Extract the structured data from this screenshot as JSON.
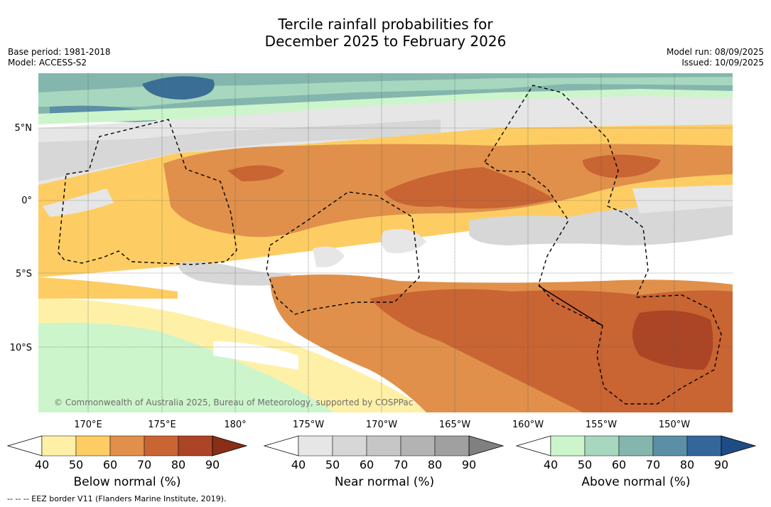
{
  "title_line1": "Tercile rainfall probabilities for",
  "title_line2": "December 2025 to February 2026",
  "base_period": "Base period: 1981-2018",
  "model": "Model: ACCESS-S2",
  "model_run": "Model run: 08/09/2025",
  "issued": "Issued: 10/09/2025",
  "credit": "© Commonwealth of Australia 2025, Bureau of Meteorology, supported by COSPPac",
  "footer": "--  --  -- EEZ border V11 (Flanders Marine Institute, 2019).",
  "lat_labels": [
    "5°N",
    "0°",
    "5°S",
    "10°S"
  ],
  "lon_labels": [
    "170°E",
    "175°E",
    "180°",
    "175°W",
    "170°W",
    "165°W",
    "160°W",
    "155°W",
    "150°W"
  ],
  "colorbars": [
    {
      "label": "Below normal (%)",
      "ticks": [
        "40",
        "50",
        "60",
        "70",
        "80",
        "90"
      ],
      "colors": [
        "#ffffff",
        "#fff0a8",
        "#fdcd64",
        "#e0904a",
        "#c96433",
        "#ab4526",
        "#8a2e17"
      ]
    },
    {
      "label": "Near normal (%)",
      "ticks": [
        "40",
        "50",
        "60",
        "70",
        "80",
        "90"
      ],
      "colors": [
        "#ffffff",
        "#e6e6e6",
        "#d7d7d7",
        "#c6c6c6",
        "#b3b3b3",
        "#a0a0a0",
        "#808080"
      ]
    },
    {
      "label": "Above normal (%)",
      "ticks": [
        "40",
        "50",
        "60",
        "70",
        "80",
        "90"
      ],
      "colors": [
        "#ffffff",
        "#ccf5cc",
        "#a7d7be",
        "#85b6ad",
        "#5b8fa6",
        "#35669a",
        "#1e4d86"
      ]
    }
  ]
}
